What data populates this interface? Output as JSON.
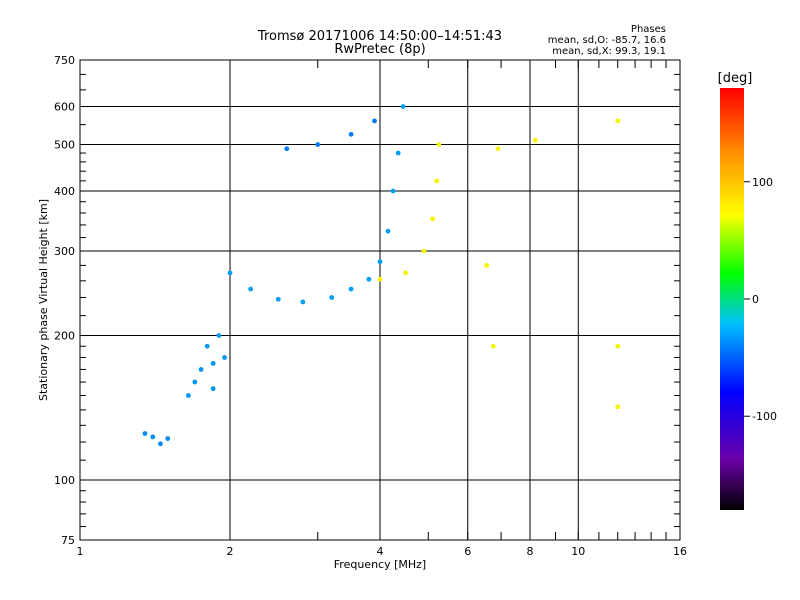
{
  "chart_data": {
    "type": "scatter",
    "title": "Tromsø 20171006 14:50:00–14:51:43",
    "subtitle": "RwPretec (8p)",
    "xlabel": "Frequency [MHz]",
    "ylabel": "Stationary phase Virtual Height [km]",
    "xscale": "log",
    "yscale": "log",
    "xlim": [
      1,
      16
    ],
    "ylim": [
      75,
      750
    ],
    "x_ticks": [
      "1",
      "2",
      "4",
      "6",
      "8",
      "10",
      "16"
    ],
    "y_ticks": [
      "75",
      "100",
      "200",
      "300",
      "400",
      "500",
      "600",
      "750"
    ],
    "grid": true,
    "stats": {
      "header": "Phases",
      "o_line": "mean, sd,O: -85.7, 16.6",
      "x_line": "mean, sd,X:  99.3, 19.1"
    },
    "colorbar": {
      "label": "[deg]",
      "range": [
        -180,
        180
      ],
      "ticks": [
        "100",
        "0",
        "-100"
      ],
      "tick_values": [
        100,
        0,
        -100
      ]
    },
    "series": [
      {
        "phase_deg": -95,
        "points": [
          [
            1.35,
            125
          ],
          [
            1.4,
            123
          ],
          [
            1.45,
            119
          ],
          [
            1.5,
            122
          ]
        ]
      },
      {
        "phase_deg": -90,
        "points": [
          [
            1.75,
            170
          ],
          [
            1.85,
            175
          ],
          [
            1.8,
            190
          ],
          [
            1.9,
            200
          ],
          [
            1.7,
            160
          ],
          [
            1.85,
            155
          ],
          [
            1.95,
            180
          ],
          [
            1.65,
            150
          ]
        ]
      },
      {
        "phase_deg": -88,
        "points": [
          [
            2.0,
            270
          ],
          [
            2.2,
            250
          ],
          [
            2.5,
            238
          ],
          [
            2.8,
            235
          ],
          [
            3.2,
            240
          ],
          [
            3.5,
            250
          ],
          [
            3.8,
            262
          ],
          [
            4.0,
            285
          ],
          [
            4.15,
            330
          ],
          [
            4.25,
            400
          ],
          [
            4.35,
            480
          ],
          [
            4.45,
            600
          ]
        ]
      },
      {
        "phase_deg": -100,
        "points": [
          [
            2.6,
            490
          ],
          [
            3.0,
            500
          ],
          [
            3.5,
            525
          ],
          [
            3.9,
            560
          ]
        ]
      },
      {
        "phase_deg": 100,
        "points": [
          [
            4.0,
            262
          ],
          [
            4.5,
            270
          ],
          [
            4.9,
            300
          ],
          [
            5.1,
            350
          ],
          [
            5.2,
            420
          ],
          [
            5.25,
            500
          ]
        ]
      },
      {
        "phase_deg": 100,
        "points": [
          [
            6.55,
            280
          ],
          [
            6.75,
            190
          ],
          [
            6.9,
            490
          ],
          [
            8.2,
            510
          ],
          [
            12.0,
            560
          ],
          [
            12.0,
            190
          ],
          [
            12.0,
            142
          ]
        ]
      }
    ]
  }
}
